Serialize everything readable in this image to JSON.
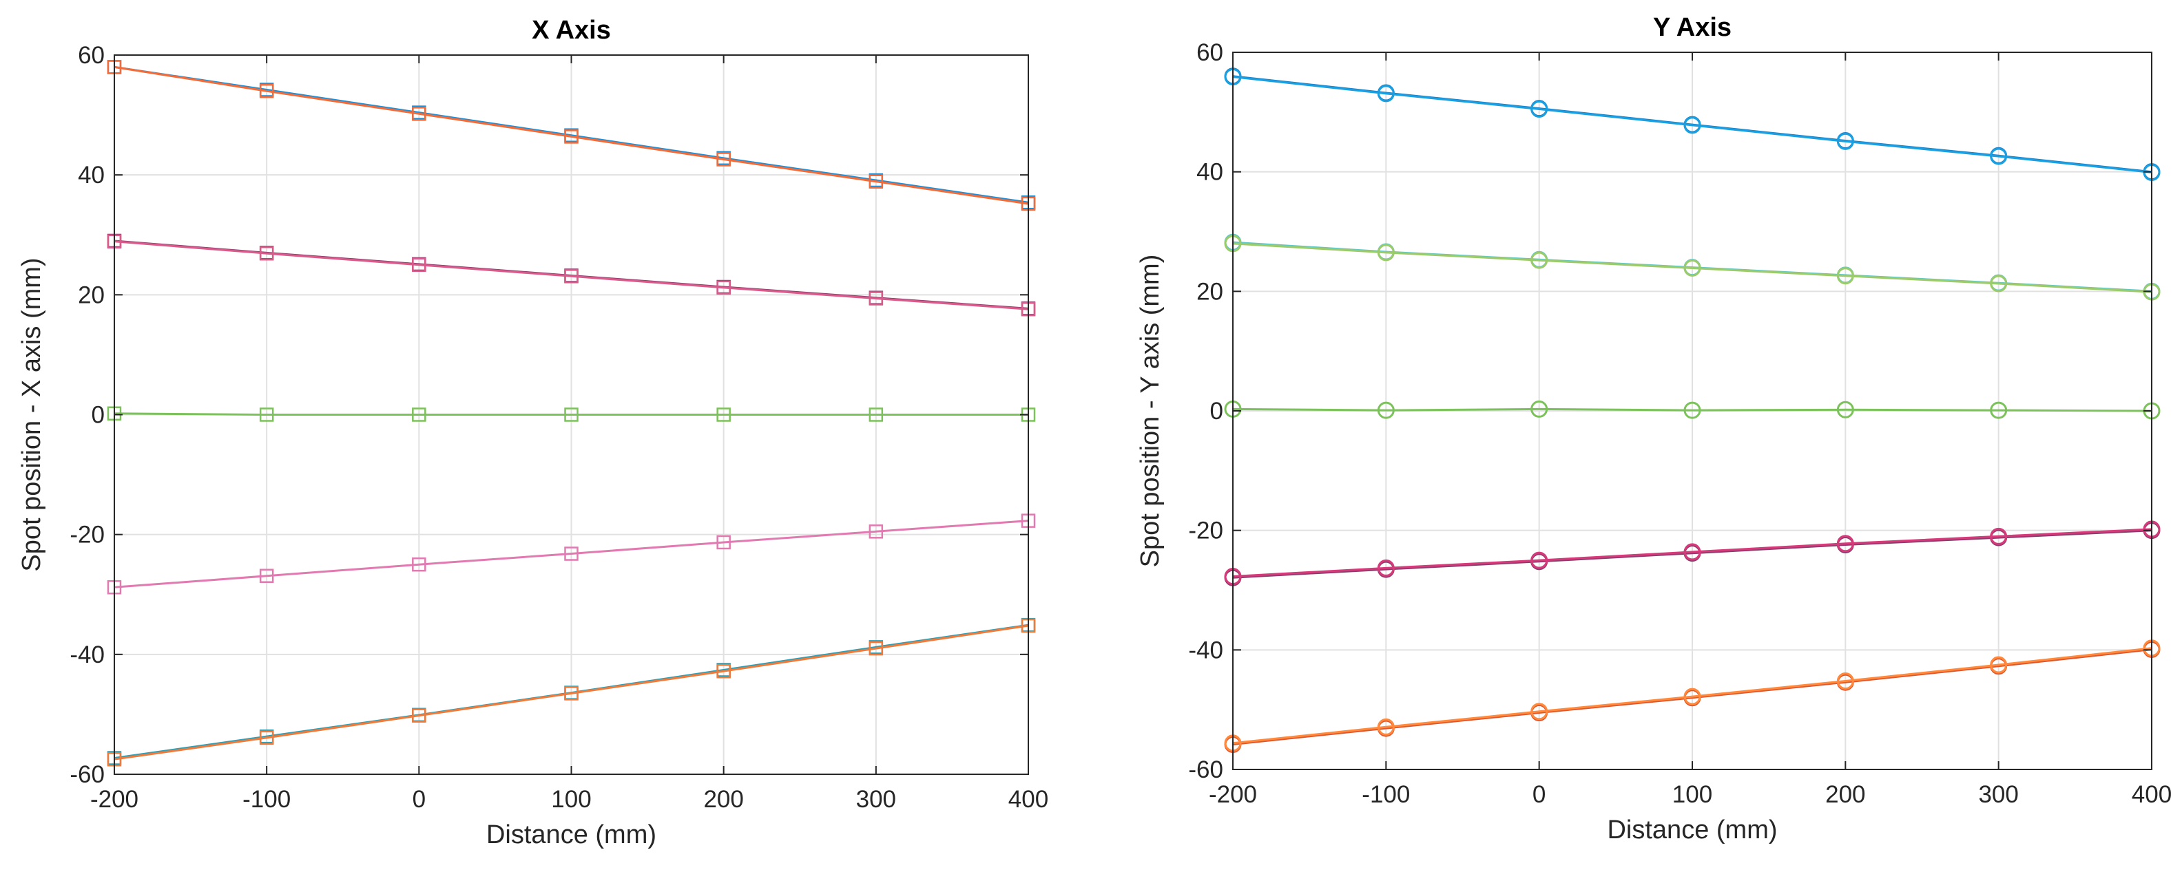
{
  "chart_data": [
    {
      "type": "line",
      "title": "X Axis",
      "xlabel": "Distance (mm)",
      "ylabel": "Spot position - X axis (mm)",
      "xlim": [
        -200,
        400
      ],
      "ylim": [
        -60,
        60
      ],
      "xticks": [
        "-200",
        "-100",
        "0",
        "100",
        "200",
        "300",
        "400"
      ],
      "yticks": [
        "60",
        "40",
        "20",
        "0",
        "-20",
        "-40",
        "-60"
      ],
      "grid": true,
      "marker": "square",
      "x": [
        -200,
        -100,
        0,
        100,
        200,
        300,
        400
      ],
      "series": [
        {
          "color": "#1E90D8",
          "values": [
            58,
            54.2,
            50.4,
            46.6,
            42.8,
            39.1,
            35.4
          ]
        },
        {
          "color": "#F26B38",
          "values": [
            58,
            54,
            50.2,
            46.4,
            42.6,
            38.9,
            35.2
          ]
        },
        {
          "color": "#8E3A6E",
          "values": [
            29,
            27,
            25.1,
            23.2,
            21.3,
            19.5,
            17.7
          ]
        },
        {
          "color": "#D95B8A",
          "values": [
            28.9,
            26.9,
            25,
            23.1,
            21.2,
            19.4,
            17.6
          ]
        },
        {
          "color": "#7CC25A",
          "values": [
            0.2,
            0,
            0,
            0,
            0,
            0,
            0
          ]
        },
        {
          "color": "#E07AB0",
          "values": [
            -28.8,
            -26.9,
            -25,
            -23.2,
            -21.3,
            -19.5,
            -17.7
          ]
        },
        {
          "color": "#2E9FB5",
          "values": [
            -57.3,
            -53.7,
            -50.1,
            -46.4,
            -42.6,
            -38.8,
            -35.1
          ]
        },
        {
          "color": "#F07A3A",
          "values": [
            -57.5,
            -53.9,
            -50.2,
            -46.5,
            -42.8,
            -39,
            -35.2
          ]
        }
      ]
    },
    {
      "type": "line",
      "title": "Y Axis",
      "xlabel": "Distance (mm)",
      "ylabel": "Spot position - Y axis (mm)",
      "xlim": [
        -200,
        400
      ],
      "ylim": [
        -60,
        60
      ],
      "xticks": [
        "-200",
        "-100",
        "0",
        "100",
        "200",
        "300",
        "400"
      ],
      "yticks": [
        "60",
        "40",
        "20",
        "0",
        "-20",
        "-40",
        "-60"
      ],
      "grid": true,
      "marker": "circle",
      "x": [
        -200,
        -100,
        0,
        100,
        200,
        300,
        400
      ],
      "series": [
        {
          "color": "#1C7FC8",
          "values": [
            56,
            53.2,
            50.6,
            47.9,
            45.2,
            42.7,
            40
          ]
        },
        {
          "color": "#1AA0E0",
          "values": [
            55.9,
            53.1,
            50.5,
            47.8,
            45.1,
            42.6,
            39.9
          ]
        },
        {
          "color": "#5EC7C7",
          "values": [
            28.2,
            26.6,
            25.3,
            24,
            22.7,
            21.4,
            20
          ]
        },
        {
          "color": "#9CCB6A",
          "values": [
            28,
            26.5,
            25.2,
            23.9,
            22.6,
            21.3,
            19.9
          ]
        },
        {
          "color": "#7CC25A",
          "values": [
            0.3,
            0.1,
            0.3,
            0.1,
            0.2,
            0.1,
            0
          ]
        },
        {
          "color": "#8E3A6E",
          "values": [
            -27.9,
            -26.5,
            -25.2,
            -23.8,
            -22.4,
            -21.2,
            -20
          ]
        },
        {
          "color": "#D63A7A",
          "values": [
            -27.7,
            -26.3,
            -25,
            -23.6,
            -22.2,
            -21,
            -19.8
          ]
        },
        {
          "color": "#E0552A",
          "values": [
            -55.8,
            -53.1,
            -50.5,
            -48,
            -45.4,
            -42.7,
            -39.9
          ]
        },
        {
          "color": "#FF8A3D",
          "values": [
            -55.6,
            -52.9,
            -50.3,
            -47.8,
            -45.2,
            -42.5,
            -39.7
          ]
        }
      ]
    }
  ]
}
